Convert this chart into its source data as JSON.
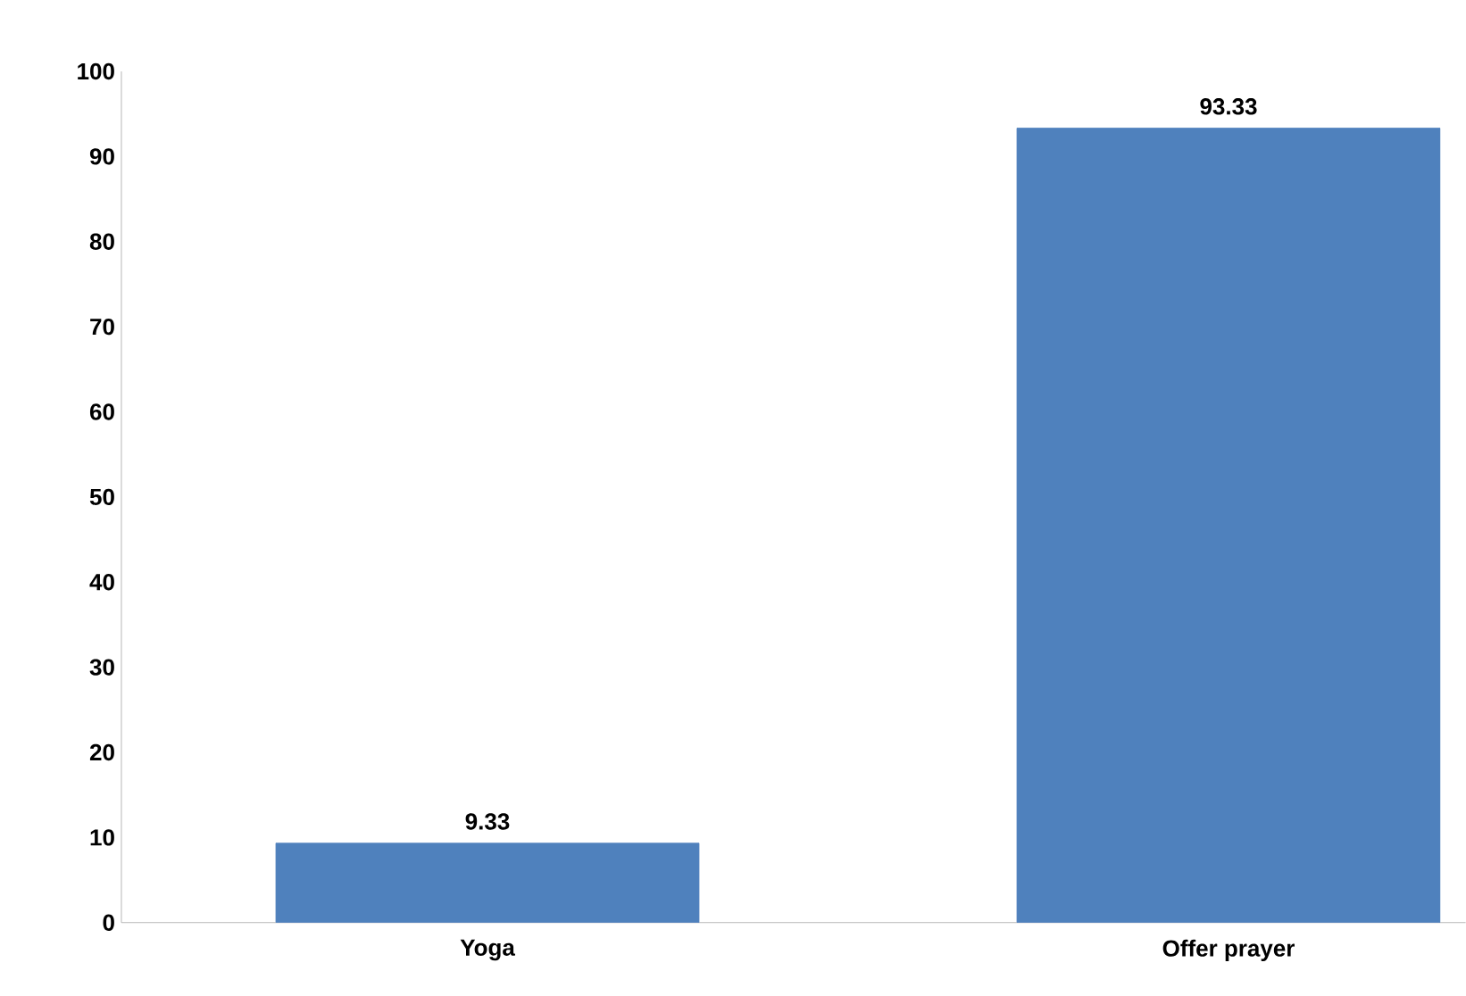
{
  "chart_data": {
    "type": "bar",
    "categories": [
      "Yoga",
      "Offer prayer"
    ],
    "values": [
      9.33,
      93.33
    ],
    "color": "#4f81bd",
    "ylim": [
      0,
      100
    ],
    "yticks": [
      0,
      10,
      20,
      30,
      40,
      50,
      60,
      70,
      80,
      90,
      100
    ],
    "data_labels": true
  }
}
